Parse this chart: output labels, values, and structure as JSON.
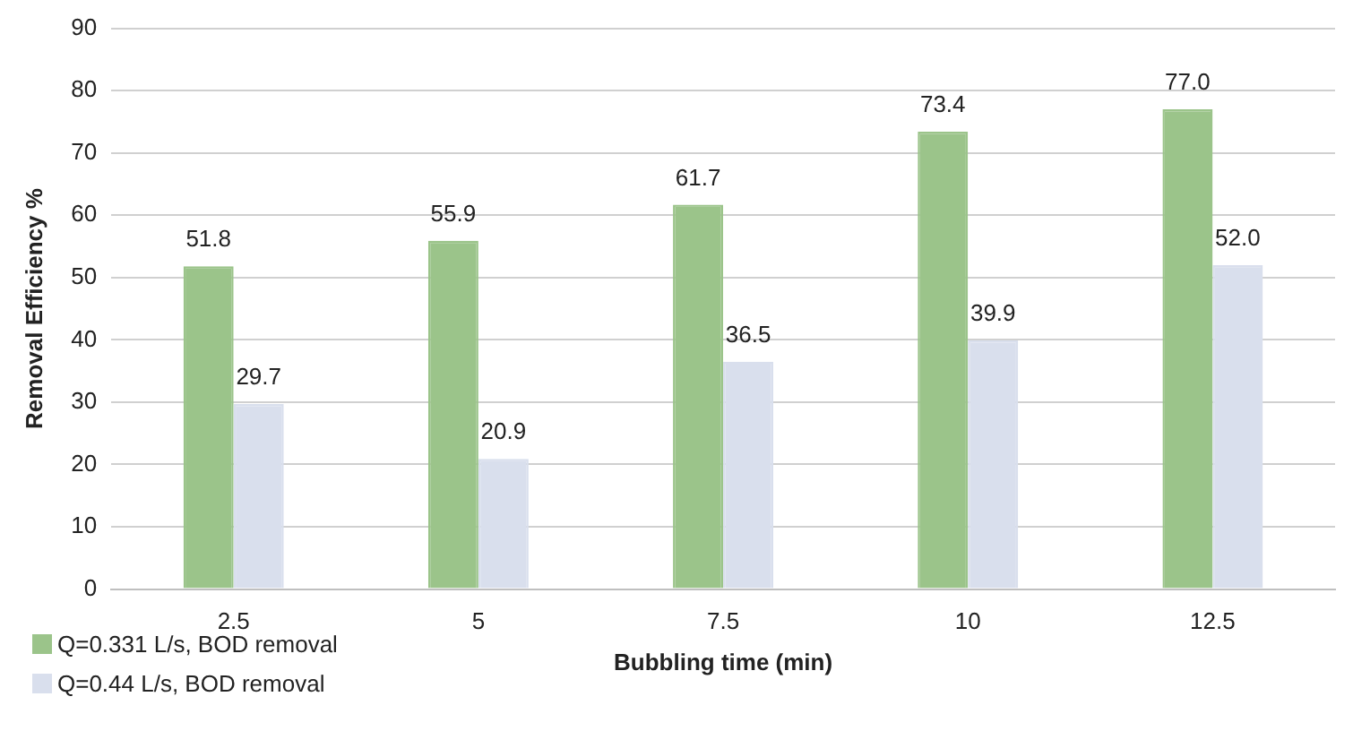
{
  "chart_data": {
    "type": "bar",
    "xlabel": "Bubbling time (min)",
    "ylabel": "Removal Efficiency %",
    "categories": [
      "2.5",
      "5",
      "7.5",
      "10",
      "12.5"
    ],
    "series": [
      {
        "name": "Q=0.331 L/s, BOD removal",
        "color": "#9bc48a",
        "values": [
          51.8,
          55.9,
          61.7,
          73.4,
          77.0
        ],
        "value_labels": [
          "51.8",
          "55.9",
          "61.7",
          "73.4",
          "77.0"
        ]
      },
      {
        "name": "Q=0.44 L/s, BOD removal",
        "color": "#d9dfed",
        "values": [
          29.7,
          20.9,
          36.5,
          39.9,
          52.0
        ],
        "value_labels": [
          "29.7",
          "20.9",
          "36.5",
          "39.9",
          "52.0"
        ]
      }
    ],
    "ylim": [
      0,
      90
    ],
    "yticks": [
      0,
      10,
      20,
      30,
      40,
      50,
      60,
      70,
      80,
      90
    ],
    "grid": "y",
    "legend": "bottom left"
  }
}
